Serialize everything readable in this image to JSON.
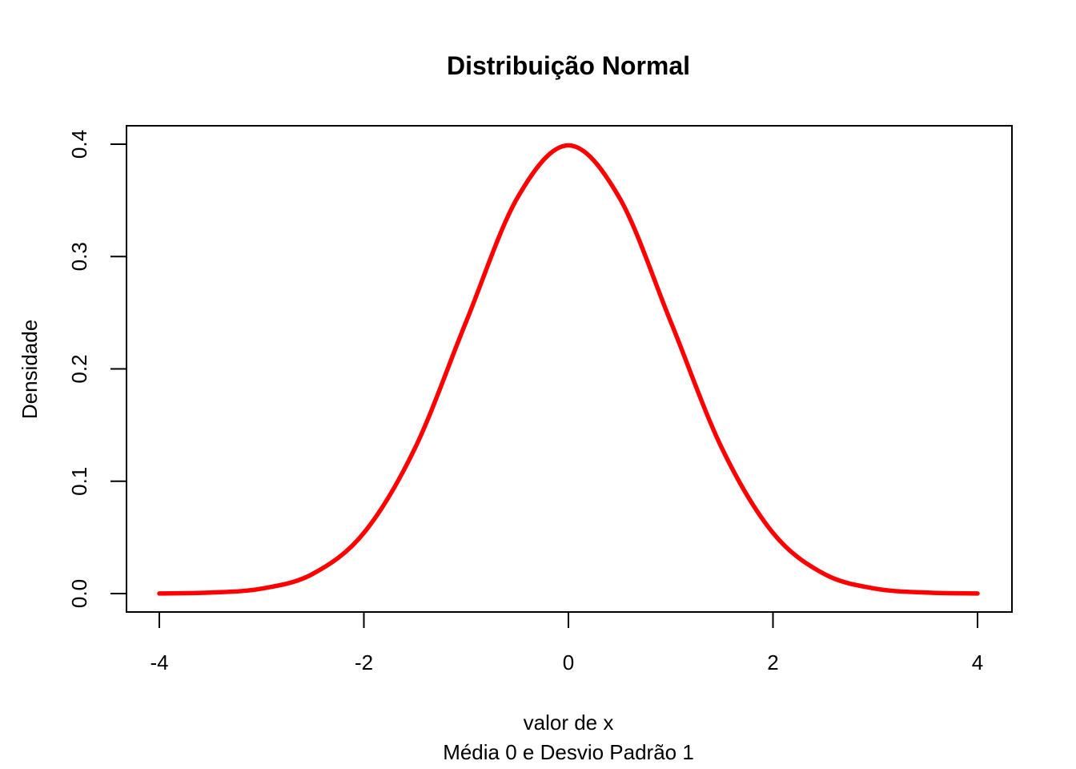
{
  "chart_data": {
    "type": "line",
    "title": "Distribuição Normal",
    "xlabel": "valor de x",
    "ylabel": "Densidade",
    "subtitle": "Média 0 e Desvio Padrão 1",
    "xlim": [
      -4,
      4
    ],
    "ylim": [
      0,
      0.4
    ],
    "x_ticks": [
      -4,
      -2,
      0,
      2,
      4
    ],
    "x_tick_labels": [
      "-4",
      "-2",
      "0",
      "2",
      "4"
    ],
    "y_ticks": [
      0.0,
      0.1,
      0.2,
      0.3,
      0.4
    ],
    "y_tick_labels": [
      "0.0",
      "0.1",
      "0.2",
      "0.3",
      "0.4"
    ],
    "grid": false,
    "series": [
      {
        "color": "#ff0000",
        "x": [
          -4.0,
          -3.5,
          -3.0,
          -2.5,
          -2.0,
          -1.5,
          -1.0,
          -0.5,
          0.0,
          0.5,
          1.0,
          1.5,
          2.0,
          2.5,
          3.0,
          3.5,
          4.0
        ],
        "y": [
          0.0001,
          0.0009,
          0.0044,
          0.0175,
          0.054,
          0.1295,
          0.242,
          0.3521,
          0.3989,
          0.3521,
          0.242,
          0.1295,
          0.054,
          0.0175,
          0.0044,
          0.0009,
          0.0001
        ]
      }
    ]
  }
}
